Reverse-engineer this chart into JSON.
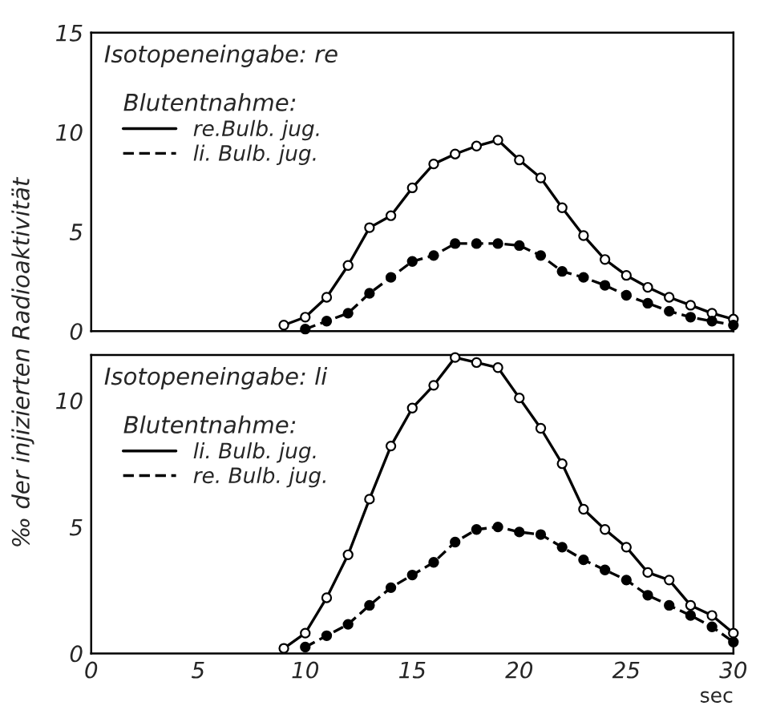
{
  "chart_data": [
    {
      "type": "line",
      "title": "Isotopeneingabe: re",
      "legend_title": "Blutentnahme:",
      "ylabel": "‰ der injizierten Radioaktivität",
      "xlim": [
        0,
        30
      ],
      "xticks": [
        0,
        5,
        10,
        15,
        20,
        25,
        30
      ],
      "ylim": [
        0,
        15
      ],
      "yticks": [
        0,
        5,
        10,
        15
      ],
      "tick_labels": "y",
      "grid": false,
      "legend": "top left",
      "marker": "circle",
      "series": [
        {
          "name": "re.Bulb. jug.",
          "color": "#000000",
          "line_style": "solid",
          "x": [
            9,
            10,
            11,
            12,
            13,
            14,
            15,
            16,
            17,
            18,
            19,
            20,
            21,
            22,
            23,
            24,
            25,
            26,
            27,
            28,
            29,
            30
          ],
          "values": [
            0.3,
            0.7,
            1.7,
            3.3,
            5.2,
            5.8,
            7.2,
            8.4,
            8.9,
            9.3,
            9.6,
            8.6,
            7.7,
            6.2,
            4.8,
            3.6,
            2.8,
            2.2,
            1.7,
            1.3,
            0.9,
            0.6
          ]
        },
        {
          "name": "li. Bulb. jug.",
          "color": "#000000",
          "line_style": "dashed",
          "x": [
            10,
            11,
            12,
            13,
            14,
            15,
            16,
            17,
            18,
            19,
            20,
            21,
            22,
            23,
            24,
            25,
            26,
            27,
            28,
            29,
            30
          ],
          "values": [
            0.1,
            0.5,
            0.9,
            1.9,
            2.7,
            3.5,
            3.8,
            4.4,
            4.4,
            4.4,
            4.3,
            3.8,
            3.0,
            2.7,
            2.3,
            1.8,
            1.4,
            1.0,
            0.7,
            0.5,
            0.3
          ]
        }
      ]
    },
    {
      "type": "line",
      "title": "Isotopeneingabe: li",
      "legend_title": "Blutentnahme:",
      "xlabel": "sec",
      "xlim": [
        0,
        30
      ],
      "xticks": [
        0,
        5,
        10,
        15,
        20,
        25,
        30
      ],
      "ylim": [
        0,
        11.8
      ],
      "yticks": [
        0,
        5,
        10
      ],
      "grid": false,
      "legend": "top left",
      "marker": "circle",
      "series": [
        {
          "name": "li. Bulb. jug.",
          "color": "#000000",
          "line_style": "solid",
          "x": [
            9,
            10,
            11,
            12,
            13,
            14,
            15,
            16,
            17,
            18,
            19,
            20,
            21,
            22,
            23,
            24,
            25,
            26,
            27,
            28,
            29,
            30
          ],
          "values": [
            0.2,
            0.8,
            2.2,
            3.9,
            6.1,
            8.2,
            9.7,
            10.6,
            11.7,
            11.5,
            11.3,
            10.1,
            8.9,
            7.5,
            5.7,
            4.9,
            4.2,
            3.2,
            2.9,
            1.9,
            1.5,
            0.8
          ]
        },
        {
          "name": "re. Bulb. jug.",
          "color": "#000000",
          "line_style": "dashed",
          "x": [
            10,
            11,
            12,
            13,
            14,
            15,
            16,
            17,
            18,
            19,
            20,
            21,
            22,
            23,
            24,
            25,
            26,
            27,
            28,
            29,
            30
          ],
          "values": [
            0.25,
            0.7,
            1.15,
            1.9,
            2.6,
            3.1,
            3.6,
            4.4,
            4.9,
            5.0,
            4.8,
            4.7,
            4.2,
            3.7,
            3.3,
            2.9,
            2.3,
            1.9,
            1.5,
            1.05,
            0.45
          ]
        }
      ]
    }
  ]
}
